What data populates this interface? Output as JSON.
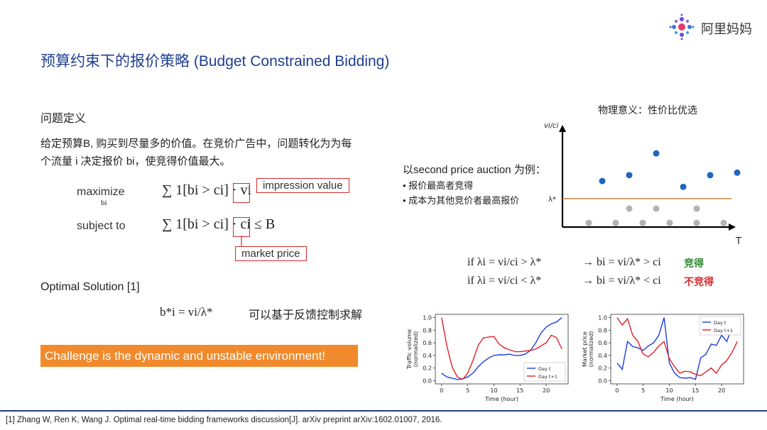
{
  "header": {
    "title": "预算约束下的报价策略 (Budget Constrained Bidding)",
    "logo_text": "阿里妈妈"
  },
  "problem": {
    "heading": "问题定义",
    "desc_line1": "给定预算B, 购买到尽量多的价值。在竞价广告中，问题转化为为每",
    "desc_line2": "个流量 i 决定报价 bi，使竞得价值最大。",
    "maximize_label": "maximize",
    "maximize_sub": "bi",
    "objective": "∑ 1[bi > ci] · vi",
    "subject_to_label": "subject to",
    "constraint": "∑ 1[bi > ci] · ci ≤ B",
    "impression_value_callout": "impression value",
    "market_price_callout": "market price"
  },
  "solution": {
    "heading": "Optimal Solution [1]",
    "formula": "b*i = vi/λ*",
    "note": "可以基于反馈控制求解"
  },
  "challenge": "Challenge is the dynamic and unstable environment!",
  "auction": {
    "intro": "以second price auction 为例：",
    "bullets": [
      "报价最高者竞得",
      "成本为其他竞价者最高报价"
    ]
  },
  "scatter": {
    "caption": "物理意义：性价比优选",
    "y_label": "vi/ci",
    "x_label": "T",
    "threshold_label": "λ*",
    "colors": {
      "above": "#1f66c2",
      "below": "#b3b3b3",
      "threshold": "#c8975a"
    }
  },
  "rules": {
    "rule1": "if λi = vi/ci > λ*",
    "result1": "→ bi = vi/λ* > ci",
    "tag1": "竞得",
    "rule2": "if λi = vi/ci < λ*",
    "result2": "→ bi = vi/λ* < ci",
    "tag2": "不竞得"
  },
  "reference": "[1] Zhang W, Ren K, Wang J. Optimal real-time bidding frameworks discussion[J]. arXiv preprint arXiv:1602.01007, 2016.",
  "chart_data": [
    {
      "type": "scatter",
      "title": "物理意义：性价比优选",
      "xlabel": "T",
      "ylabel": "vi/ci",
      "threshold_label": "λ*",
      "series": [
        {
          "name": "above",
          "x": [
            1,
            2,
            3,
            4,
            5,
            6
          ],
          "y": [
            0.55,
            0.62,
            0.88,
            0.48,
            0.62,
            0.65
          ]
        },
        {
          "name": "below",
          "x": [
            0.5,
            1.5,
            2.5,
            3.5,
            4.5,
            5.5
          ],
          "y": [
            0.05,
            0.05,
            0.05,
            0.05,
            0.05,
            0.05
          ]
        },
        {
          "name": "below2",
          "x": [
            2,
            3,
            4.5
          ],
          "y": [
            0.22,
            0.22,
            0.22
          ]
        }
      ]
    },
    {
      "type": "line",
      "xlabel": "Time (hour)",
      "ylabel": "Traffic volume\n(normalized)",
      "xlim": [
        -1.2,
        24.2
      ],
      "ylim": [
        -0.05,
        1.05
      ],
      "xticks": [
        0,
        5,
        10,
        15,
        20
      ],
      "yticks": [
        0.0,
        0.2,
        0.4,
        0.6,
        0.8,
        1.0
      ],
      "legend_position": "lower-right",
      "x": [
        0,
        1,
        2,
        3,
        4,
        5,
        6,
        7,
        8,
        9,
        10,
        11,
        12,
        13,
        14,
        15,
        16,
        17,
        18,
        19,
        20,
        21,
        22,
        23
      ],
      "series": [
        {
          "name": "Day t",
          "color": "#1f3fd6",
          "values": [
            0.12,
            0.06,
            0.04,
            0.02,
            0.03,
            0.06,
            0.12,
            0.22,
            0.3,
            0.36,
            0.4,
            0.41,
            0.41,
            0.42,
            0.4,
            0.4,
            0.42,
            0.48,
            0.6,
            0.75,
            0.85,
            0.9,
            0.93,
            1.0
          ]
        },
        {
          "name": "Day t+1",
          "color": "#e0202a",
          "values": [
            1.0,
            0.55,
            0.22,
            0.06,
            0.02,
            0.12,
            0.32,
            0.56,
            0.68,
            0.69,
            0.7,
            0.58,
            0.52,
            0.49,
            0.46,
            0.46,
            0.47,
            0.48,
            0.5,
            0.55,
            0.6,
            0.72,
            0.68,
            0.5
          ]
        }
      ]
    },
    {
      "type": "line",
      "xlabel": "Time (hour)",
      "ylabel": "Market price\n(normalized)",
      "xlim": [
        -1.2,
        24.2
      ],
      "ylim": [
        -0.05,
        1.05
      ],
      "xticks": [
        0,
        5,
        10,
        15,
        20
      ],
      "yticks": [
        0.0,
        0.2,
        0.4,
        0.6,
        0.8,
        1.0
      ],
      "legend_position": "top-right",
      "x": [
        0,
        1,
        2,
        3,
        4,
        5,
        6,
        7,
        8,
        9,
        10,
        11,
        12,
        13,
        14,
        15,
        16,
        17,
        18,
        19,
        20,
        21,
        22,
        23
      ],
      "series": [
        {
          "name": "Day t",
          "color": "#1f3fd6",
          "values": [
            0.28,
            0.18,
            0.62,
            0.54,
            0.52,
            0.48,
            0.55,
            0.6,
            0.72,
            1.0,
            0.28,
            0.12,
            0.05,
            0.04,
            0.05,
            0.02,
            0.36,
            0.42,
            0.58,
            0.56,
            0.72,
            0.62,
            0.86,
            0.84
          ]
        },
        {
          "name": "Day t+1",
          "color": "#e0202a",
          "values": [
            1.0,
            0.88,
            0.98,
            0.72,
            0.62,
            0.42,
            0.38,
            0.45,
            0.55,
            0.62,
            0.35,
            0.22,
            0.12,
            0.15,
            0.14,
            0.1,
            0.08,
            0.14,
            0.2,
            0.12,
            0.25,
            0.32,
            0.45,
            0.62
          ]
        }
      ]
    }
  ]
}
